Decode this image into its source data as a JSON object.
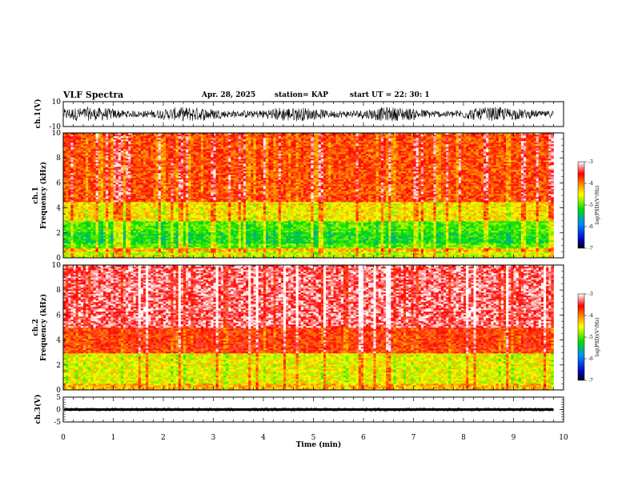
{
  "header": {
    "title": "VLF Spectra",
    "date": "Apr. 28, 2025",
    "station": "station= KAP",
    "start": "start  UT =   22: 30: 1"
  },
  "colors": {
    "black": "#000000",
    "colorbar_stops": [
      "#000000",
      "#0000cc",
      "#0088ff",
      "#00e000",
      "#ffff00",
      "#ff8000",
      "#ff0000",
      "#ffffff"
    ]
  },
  "chart_data": [
    {
      "type": "line",
      "name": "ch1-waveform",
      "ylabel": "ch.1(V)",
      "ylim": [
        -10,
        10
      ],
      "yticks": [
        "10",
        "-10"
      ],
      "xlim": [
        0,
        10
      ],
      "envelope_approx": [
        [
          0,
          -5,
          5
        ],
        [
          2,
          -4,
          4
        ],
        [
          4,
          -5,
          5
        ],
        [
          6,
          -4,
          4
        ],
        [
          8,
          -5,
          5
        ],
        [
          9.8,
          -4,
          4
        ]
      ]
    },
    {
      "type": "heatmap",
      "name": "ch1-spectrogram",
      "ylabel": "ch.1",
      "ylabel2": "Frequency (kHz)",
      "xlim": [
        0,
        10
      ],
      "ylim": [
        0,
        10
      ],
      "yticks": [
        "0",
        "2",
        "4",
        "6",
        "8",
        "10"
      ],
      "data_extent_min": 9.8,
      "colorbar": {
        "label": "log(PSD)(V²/Hz)",
        "range": [
          -7,
          -3
        ],
        "ticks": [
          "-3",
          "-4",
          "-5",
          "-6",
          "-7"
        ]
      },
      "bands": [
        {
          "from_khz": 0,
          "to_khz": 0.5,
          "level": -4.6
        },
        {
          "from_khz": 0.5,
          "to_khz": 0.8,
          "level": -4.2
        },
        {
          "from_khz": 0.8,
          "to_khz": 1.2,
          "level": -4.9
        },
        {
          "from_khz": 1.2,
          "to_khz": 2.0,
          "level": -5.2
        },
        {
          "from_khz": 2.0,
          "to_khz": 3.0,
          "level": -5.0
        },
        {
          "from_khz": 3.0,
          "to_khz": 4.5,
          "level": -4.4
        },
        {
          "from_khz": 4.5,
          "to_khz": 10,
          "level": -3.8
        }
      ]
    },
    {
      "type": "heatmap",
      "name": "ch2-spectrogram",
      "ylabel": "ch.2",
      "ylabel2": "Frequency (kHz)",
      "xlim": [
        0,
        10
      ],
      "ylim": [
        0,
        10
      ],
      "yticks": [
        "0",
        "2",
        "4",
        "6",
        "8",
        "10"
      ],
      "data_extent_min": 9.8,
      "colorbar": {
        "label": "log(PSD)(V²/Hz)",
        "range": [
          -7,
          -3
        ],
        "ticks": [
          "-3",
          "-4",
          "-5",
          "-6",
          "-7"
        ]
      },
      "bands": [
        {
          "from_khz": 0,
          "to_khz": 0.5,
          "level": -4.2
        },
        {
          "from_khz": 0.5,
          "to_khz": 3.0,
          "level": -4.5
        },
        {
          "from_khz": 3.0,
          "to_khz": 5.0,
          "level": -3.7
        },
        {
          "from_khz": 5.0,
          "to_khz": 10,
          "level": -3.3
        }
      ]
    },
    {
      "type": "line",
      "name": "ch3-waveform",
      "ylabel": "ch.3(V)",
      "ylim": [
        -5,
        5
      ],
      "yticks": [
        "5",
        "0",
        "-5"
      ],
      "xlim": [
        0,
        10
      ],
      "envelope_approx": [
        [
          0,
          -0.5,
          0.5
        ],
        [
          9.8,
          -0.5,
          0.5
        ]
      ]
    }
  ],
  "x_axis": {
    "label": "Time  (min)",
    "ticks": [
      "0",
      "1",
      "2",
      "3",
      "4",
      "5",
      "6",
      "7",
      "8",
      "9",
      "10"
    ]
  }
}
